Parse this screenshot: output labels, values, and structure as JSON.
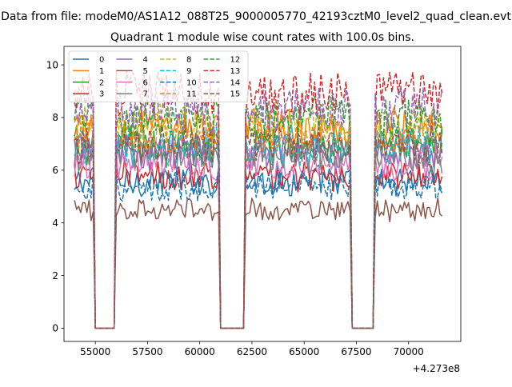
{
  "chart_data": {
    "type": "line",
    "suptitle": "Data from file: modeM0/AS1A12_088T25_9000005770_42193cztM0_level2_quad_clean.evt",
    "title": "Quadrant 1 module wise count rates with 100.0s bins.",
    "xlabel": "",
    "ylabel": "",
    "x_offset_label": "+4.273e8",
    "xlim": [
      53500,
      72500
    ],
    "ylim": [
      -0.5,
      10.7
    ],
    "x_ticks": [
      55000,
      57500,
      60000,
      62500,
      65000,
      67500,
      70000
    ],
    "x_tick_labels": [
      "55000",
      "57500",
      "60000",
      "62500",
      "65000",
      "67500",
      "70000"
    ],
    "y_ticks": [
      0,
      2,
      4,
      6,
      8,
      10
    ],
    "y_tick_labels": [
      "0",
      "2",
      "4",
      "6",
      "8",
      "10"
    ],
    "grid": false,
    "legend_position": "top-left",
    "legend_ncol": 4,
    "x_range": [
      54000,
      71600
    ],
    "gaps": [
      [
        54900,
        56000
      ],
      [
        60900,
        62200
      ],
      [
        67200,
        68400
      ]
    ],
    "colors": [
      "#1f77b4",
      "#ff7f0e",
      "#2ca02c",
      "#d62728",
      "#9467bd",
      "#8c564b",
      "#e377c2",
      "#7f7f7f",
      "#bcbd22",
      "#17becf"
    ],
    "series": [
      {
        "name": "0",
        "mean": 5.6,
        "spread": 0.35,
        "dashed": false
      },
      {
        "name": "1",
        "mean": 7.6,
        "spread": 0.45,
        "dashed": false
      },
      {
        "name": "2",
        "mean": 6.9,
        "spread": 0.45,
        "dashed": false
      },
      {
        "name": "3",
        "mean": 5.8,
        "spread": 0.35,
        "dashed": false
      },
      {
        "name": "4",
        "mean": 6.7,
        "spread": 0.45,
        "dashed": false
      },
      {
        "name": "5",
        "mean": 4.5,
        "spread": 0.25,
        "dashed": false
      },
      {
        "name": "6",
        "mean": 6.3,
        "spread": 0.4,
        "dashed": false
      },
      {
        "name": "7",
        "mean": 6.6,
        "spread": 0.4,
        "dashed": false
      },
      {
        "name": "8",
        "mean": 7.7,
        "spread": 0.45,
        "dashed": true
      },
      {
        "name": "9",
        "mean": 6.9,
        "spread": 0.45,
        "dashed": true
      },
      {
        "name": "10",
        "mean": 5.4,
        "spread": 0.35,
        "dashed": true
      },
      {
        "name": "11",
        "mean": 7.4,
        "spread": 0.45,
        "dashed": true
      },
      {
        "name": "12",
        "mean": 8.0,
        "spread": 0.45,
        "dashed": true
      },
      {
        "name": "13",
        "mean": 8.9,
        "spread": 0.55,
        "dashed": true
      },
      {
        "name": "14",
        "mean": 8.3,
        "spread": 0.5,
        "dashed": true
      },
      {
        "name": "15",
        "mean": 7.0,
        "spread": 0.45,
        "dashed": true
      }
    ]
  }
}
